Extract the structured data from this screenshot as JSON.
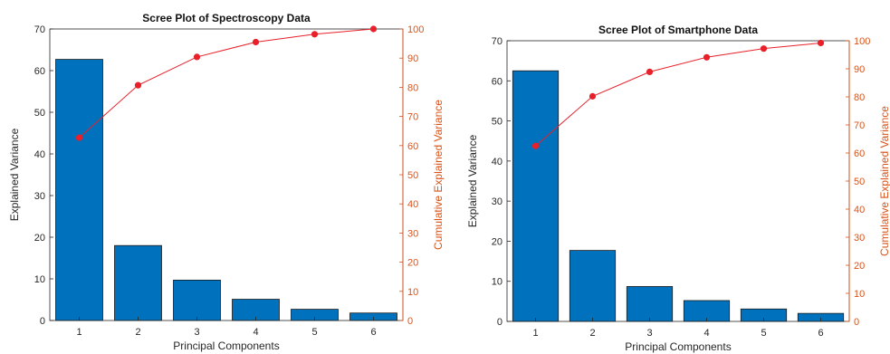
{
  "chart_data": [
    {
      "type": "bar",
      "title": "Scree Plot of Spectroscopy Data",
      "xlabel": "Principal Components",
      "ylabel": "Explained Variance",
      "y2label": "Cumulative Explained Variance",
      "categories": [
        "1",
        "2",
        "3",
        "4",
        "5",
        "6"
      ],
      "ylim": [
        0,
        70
      ],
      "yticks": [
        "0",
        "10",
        "20",
        "30",
        "40",
        "50",
        "60",
        "70"
      ],
      "y2lim": [
        0,
        100
      ],
      "y2ticks": [
        "0",
        "10",
        "20",
        "30",
        "40",
        "50",
        "60",
        "70",
        "80",
        "90",
        "100"
      ],
      "series": [
        {
          "values": [
            62.7,
            18.0,
            9.7,
            5.1,
            2.7,
            1.8
          ],
          "axis": "left",
          "kind": "bar",
          "color": "#0072bd"
        },
        {
          "values": [
            62.7,
            80.7,
            90.4,
            95.5,
            98.2,
            100.0
          ],
          "axis": "right",
          "kind": "line",
          "color": "#e8202a"
        }
      ],
      "grid": false
    },
    {
      "type": "bar",
      "title": "Scree Plot of Smartphone Data",
      "xlabel": "Principal Components",
      "ylabel": "Explained Variance",
      "y2label": "Cumulative Explained Variance",
      "categories": [
        "1",
        "2",
        "3",
        "4",
        "5",
        "6"
      ],
      "ylim": [
        0,
        70
      ],
      "yticks": [
        "0",
        "10",
        "20",
        "30",
        "40",
        "50",
        "60",
        "70"
      ],
      "y2lim": [
        0,
        100
      ],
      "y2ticks": [
        "0",
        "10",
        "20",
        "30",
        "40",
        "50",
        "60",
        "70",
        "80",
        "90",
        "100"
      ],
      "series": [
        {
          "values": [
            62.5,
            17.7,
            8.7,
            5.2,
            3.1,
            2.0
          ],
          "axis": "left",
          "kind": "bar",
          "color": "#0072bd"
        },
        {
          "values": [
            62.5,
            80.2,
            88.9,
            94.1,
            97.2,
            99.2
          ],
          "axis": "right",
          "kind": "line",
          "color": "#e8202a"
        }
      ],
      "grid": false
    }
  ],
  "colors": {
    "bar": "#0072bd",
    "line": "#e8202a",
    "right_axis": "#d95319",
    "left_axis": "#262626"
  }
}
